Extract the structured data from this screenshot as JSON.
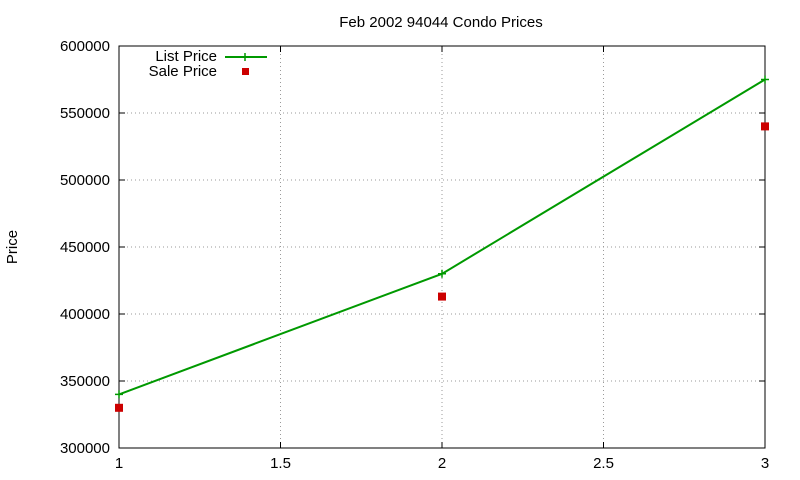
{
  "chart_data": {
    "type": "line",
    "title": "Feb 2002 94044 Condo Prices",
    "xlabel": "",
    "ylabel": "Price",
    "xlim": [
      1,
      3
    ],
    "ylim": [
      300000,
      600000
    ],
    "xticks": [
      "1",
      "1.5",
      "2",
      "2.5",
      "3"
    ],
    "yticks": [
      "300000",
      "350000",
      "400000",
      "450000",
      "500000",
      "550000",
      "600000"
    ],
    "grid": true,
    "legend_position": "top-left",
    "series": [
      {
        "name": "List Price",
        "style": "line+cross",
        "color": "#009900",
        "x": [
          1,
          2,
          3
        ],
        "y": [
          340000,
          430000,
          575000
        ]
      },
      {
        "name": "Sale Price",
        "style": "square",
        "color": "#cc0000",
        "x": [
          1,
          2,
          3
        ],
        "y": [
          330000,
          413000,
          540000
        ]
      }
    ]
  }
}
